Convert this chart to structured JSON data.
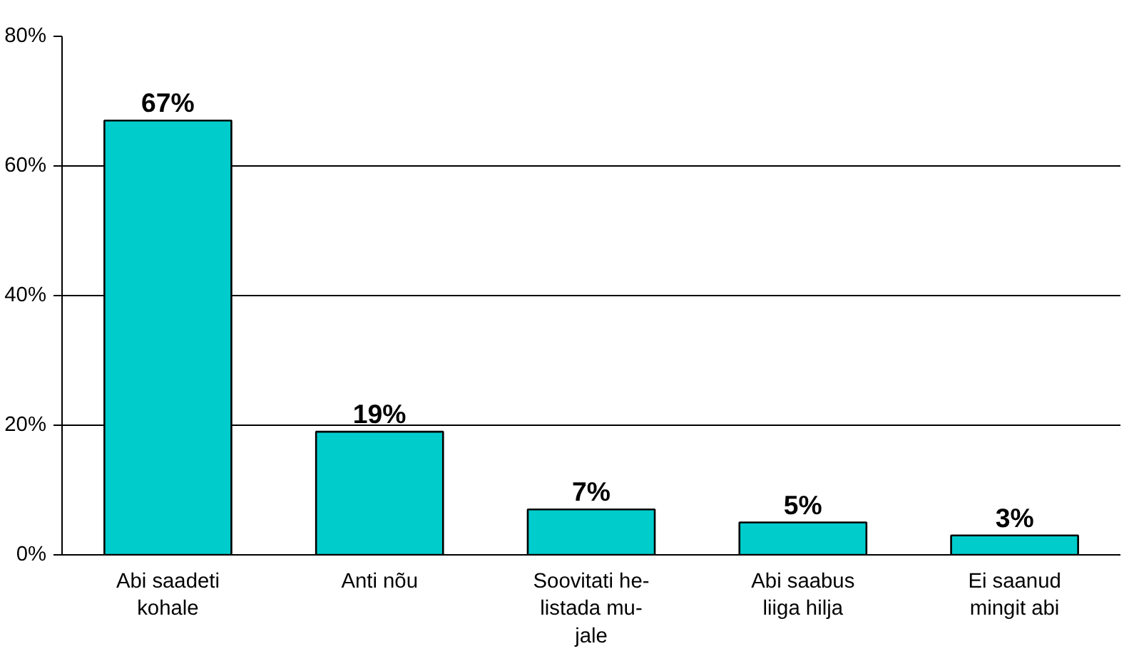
{
  "chart_data": {
    "type": "bar",
    "categories": [
      "Abi saadeti\nkohale",
      "Anti nõu",
      "Soovitati he-\nlistada mu-\njale",
      "Abi saabus\nliiga hilja",
      "Ei saanud\nmingit abi"
    ],
    "values": [
      67,
      19,
      7,
      5,
      3
    ],
    "value_labels": [
      "67%",
      "19%",
      "7%",
      "5%",
      "3%"
    ],
    "color": "#00cccc",
    "ylim": [
      0,
      80
    ],
    "yticks": [
      {
        "value": 0,
        "label": "0%"
      },
      {
        "value": 20,
        "label": "20%"
      },
      {
        "value": 40,
        "label": "40%"
      },
      {
        "value": 60,
        "label": "60%"
      },
      {
        "value": 80,
        "label": "80%"
      }
    ],
    "grid": "y"
  }
}
